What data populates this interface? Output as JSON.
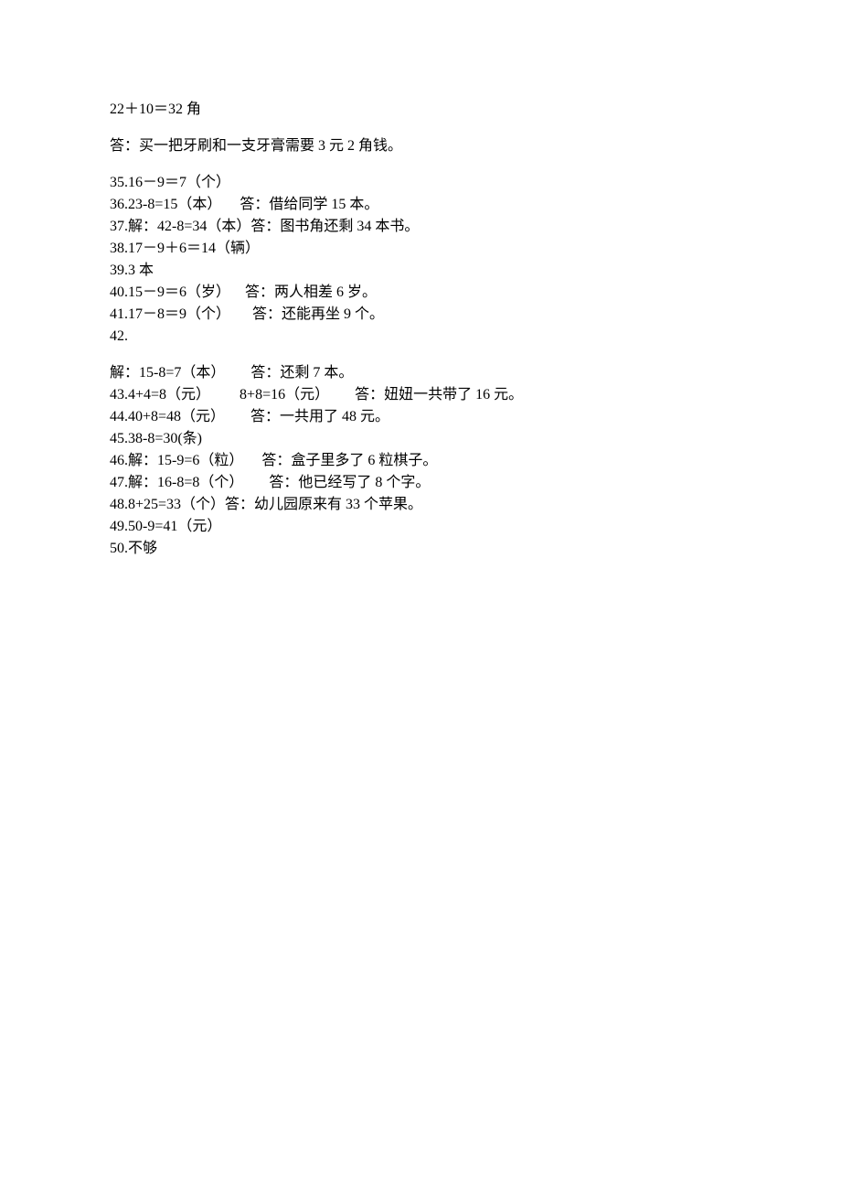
{
  "document": {
    "font_family": "SimSun",
    "font_size": 16,
    "text_color": "#000000",
    "background_color": "#ffffff",
    "lines": {
      "l1": "22＋10＝32 角",
      "l2": "答：买一把牙刷和一支牙膏需要 3 元 2 角钱。",
      "l3": "35.16－9＝7（个）",
      "l4": "36.23-8=15（本）     答：借给同学 15 本。",
      "l5": "37.解：42-8=34（本）答：图书角还剩 34 本书。",
      "l6": "38.17－9＋6＝14（辆）",
      "l7": "39.3 本",
      "l8": "40.15－9＝6（岁）    答：两人相差 6 岁。",
      "l9": "41.17－8＝9（个）      答：还能再坐 9 个。",
      "l10": "42.",
      "l11": "解：15-8=7（本）       答：还剩 7 本。",
      "l12": "43.4+4=8（元）        8+8=16（元）       答：妞妞一共带了 16 元。",
      "l13": "44.40+8=48（元）       答：一共用了 48 元。",
      "l14": "45.38-8=30(条)",
      "l15": "46.解：15-9=6（粒）     答：盒子里多了 6 粒棋子。",
      "l16": "47.解：16-8=8（个）       答：他已经写了 8 个字。",
      "l17": "48.8+25=33（个）答：幼儿园原来有 33 个苹果。",
      "l18": "49.50-9=41（元）",
      "l19": "50.不够"
    }
  }
}
